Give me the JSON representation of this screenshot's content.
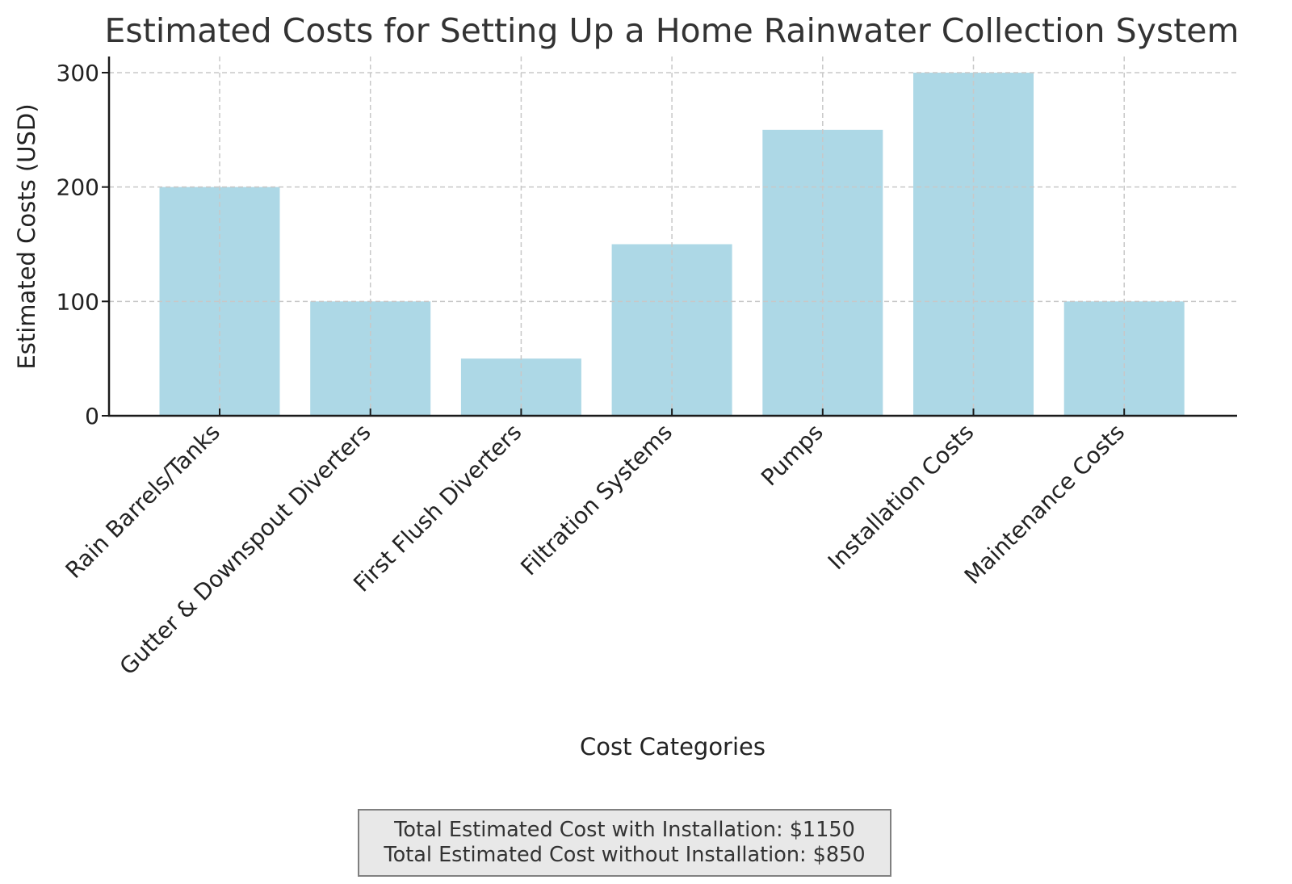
{
  "chart_data": {
    "type": "bar",
    "title": "Estimated Costs for Setting Up a Home Rainwater Collection System",
    "xlabel": "Cost Categories",
    "ylabel": "Estimated Costs (USD)",
    "categories": [
      "Rain Barrels/Tanks",
      "Gutter & Downspout Diverters",
      "First Flush Diverters",
      "Filtration Systems",
      "Pumps",
      "Installation Costs",
      "Maintenance Costs"
    ],
    "values": [
      200,
      100,
      50,
      150,
      250,
      300,
      100
    ],
    "yticks": [
      0,
      100,
      200,
      300
    ],
    "ylim": [
      0,
      315
    ],
    "grid": true,
    "bar_color": "#add8e6",
    "x_tick_rotation": 45
  },
  "summary": {
    "line1": "Total Estimated Cost with Installation: $1150",
    "line2": "Total Estimated Cost without Installation: $850"
  }
}
